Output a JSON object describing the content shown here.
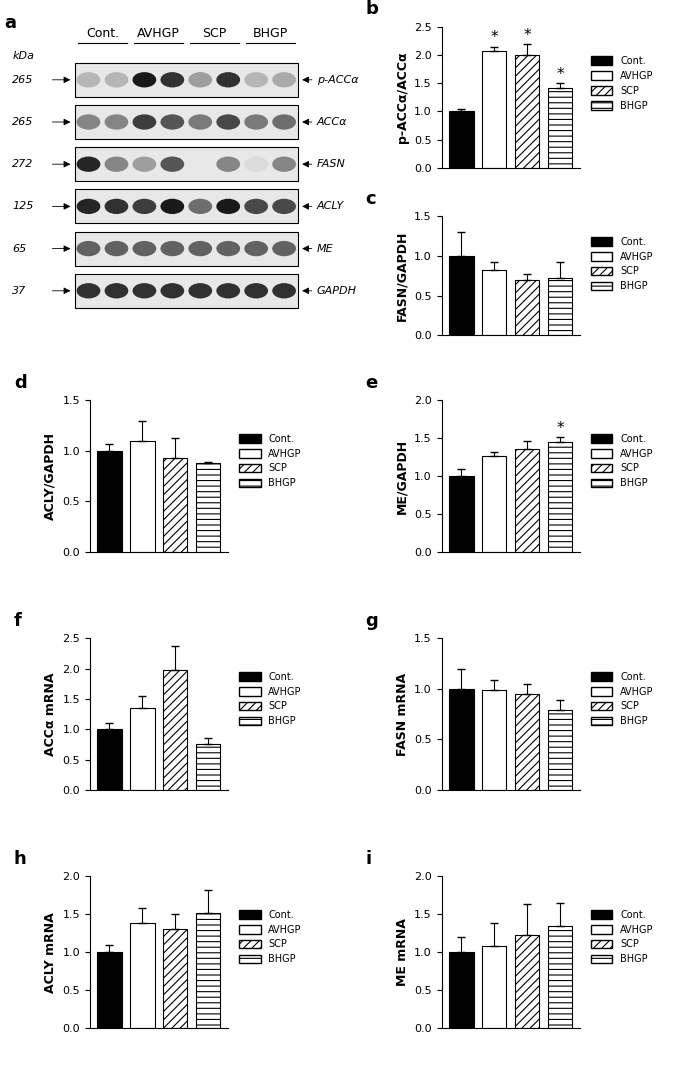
{
  "blot": {
    "panel": "a",
    "kda_label": "kDa",
    "groups": [
      "Cont.",
      "AVHGP",
      "SCP",
      "BHGP"
    ],
    "rows": [
      {
        "kda": "265",
        "protein": "p-ACCα",
        "intensity": [
          0.3,
          0.3,
          0.95,
          0.85,
          0.4,
          0.85,
          0.3,
          0.35
        ]
      },
      {
        "kda": "265",
        "protein": "ACCα",
        "intensity": [
          0.5,
          0.5,
          0.8,
          0.7,
          0.55,
          0.75,
          0.55,
          0.6
        ]
      },
      {
        "kda": "272",
        "protein": "FASN",
        "intensity": [
          0.9,
          0.5,
          0.4,
          0.7,
          0.1,
          0.5,
          0.15,
          0.5
        ]
      },
      {
        "kda": "125",
        "protein": "ACLY",
        "intensity": [
          0.9,
          0.85,
          0.8,
          0.95,
          0.6,
          0.95,
          0.75,
          0.75
        ]
      },
      {
        "kda": "65",
        "protein": "ME",
        "intensity": [
          0.65,
          0.65,
          0.65,
          0.65,
          0.65,
          0.65,
          0.65,
          0.65
        ]
      },
      {
        "kda": "37",
        "protein": "GAPDH",
        "intensity": [
          0.85,
          0.85,
          0.85,
          0.85,
          0.85,
          0.85,
          0.85,
          0.85
        ]
      }
    ]
  },
  "chart_data": [
    {
      "type": "bar",
      "panel": "b",
      "y_label": "p-ACCα/ACCα",
      "categories": [
        "Cont.",
        "AVHGP",
        "SCP",
        "BHGP"
      ],
      "values": [
        1.0,
        2.07,
        2.0,
        1.42
      ],
      "errors": [
        0.05,
        0.08,
        0.2,
        0.08
      ],
      "significance": [
        null,
        "*",
        "*",
        "*"
      ],
      "colors": [
        "#000000",
        "#ffffff",
        "#ffffff",
        "#ffffff"
      ],
      "ylim": [
        0,
        2.5
      ],
      "yticks": [
        {
          "value": 0,
          "label": "0.0"
        },
        {
          "value": 0.5,
          "label": "0.5"
        },
        {
          "value": 1,
          "label": "1.0"
        },
        {
          "value": 1.5,
          "label": "1.5"
        },
        {
          "value": 2,
          "label": "2.0"
        },
        {
          "value": 2.5,
          "label": "2.5"
        }
      ],
      "legend": "right",
      "tick_labels": "y"
    },
    {
      "type": "bar",
      "panel": "c",
      "y_label": "FASN/GAPDH",
      "categories": [
        "Cont.",
        "AVHGP",
        "SCP",
        "BHGP"
      ],
      "values": [
        1.0,
        0.83,
        0.7,
        0.72
      ],
      "errors": [
        0.3,
        0.1,
        0.07,
        0.2
      ],
      "colors": [
        "#000000",
        "#ffffff",
        "#ffffff",
        "#ffffff"
      ],
      "ylim": [
        0,
        1.5
      ],
      "yticks": [
        {
          "value": 0,
          "label": "0.0"
        },
        {
          "value": 0.5,
          "label": "0.5"
        },
        {
          "value": 1,
          "label": "1.0"
        },
        {
          "value": 1.5,
          "label": "1.5"
        }
      ],
      "legend": "right",
      "tick_labels": "y"
    },
    {
      "type": "bar",
      "panel": "d",
      "y_label": "ACLY/GAPDH",
      "categories": [
        "Cont.",
        "AVHGP",
        "SCP",
        "BHGP"
      ],
      "values": [
        1.0,
        1.1,
        0.93,
        0.88
      ],
      "errors": [
        0.07,
        0.2,
        0.2,
        0.01
      ],
      "colors": [
        "#000000",
        "#ffffff",
        "#ffffff",
        "#ffffff"
      ],
      "ylim": [
        0,
        1.5
      ],
      "yticks": [
        {
          "value": 0,
          "label": "0.0"
        },
        {
          "value": 0.5,
          "label": "0.5"
        },
        {
          "value": 1,
          "label": "1.0"
        },
        {
          "value": 1.5,
          "label": "1.5"
        }
      ],
      "legend": "right",
      "tick_labels": "y"
    },
    {
      "type": "bar",
      "panel": "e",
      "y_label": "ME/GAPDH",
      "categories": [
        "Cont.",
        "AVHGP",
        "SCP",
        "BHGP"
      ],
      "values": [
        1.0,
        1.26,
        1.36,
        1.45
      ],
      "errors": [
        0.1,
        0.06,
        0.1,
        0.06
      ],
      "significance": [
        null,
        null,
        null,
        "*"
      ],
      "colors": [
        "#000000",
        "#ffffff",
        "#ffffff",
        "#ffffff"
      ],
      "ylim": [
        0,
        2
      ],
      "yticks": [
        {
          "value": 0,
          "label": "0.0"
        },
        {
          "value": 0.5,
          "label": "0.5"
        },
        {
          "value": 1,
          "label": "1.0"
        },
        {
          "value": 1.5,
          "label": "1.5"
        },
        {
          "value": 2,
          "label": "2.0"
        }
      ],
      "legend": "right",
      "tick_labels": "y"
    },
    {
      "type": "bar",
      "panel": "f",
      "y_label": "ACCα mRNA",
      "categories": [
        "Cont.",
        "AVHGP",
        "SCP",
        "BHGP"
      ],
      "values": [
        1.0,
        1.35,
        1.97,
        0.75
      ],
      "errors": [
        0.1,
        0.2,
        0.4,
        0.1
      ],
      "colors": [
        "#000000",
        "#ffffff",
        "#ffffff",
        "#ffffff"
      ],
      "ylim": [
        0,
        2.5
      ],
      "yticks": [
        {
          "value": 0,
          "label": "0.0"
        },
        {
          "value": 0.5,
          "label": "0.5"
        },
        {
          "value": 1,
          "label": "1.0"
        },
        {
          "value": 1.5,
          "label": "1.5"
        },
        {
          "value": 2,
          "label": "2.0"
        },
        {
          "value": 2.5,
          "label": "2.5"
        }
      ],
      "legend": "right",
      "tick_labels": "y"
    },
    {
      "type": "bar",
      "panel": "g",
      "y_label": "FASN mRNA",
      "categories": [
        "Cont.",
        "AVHGP",
        "SCP",
        "BHGP"
      ],
      "values": [
        1.0,
        0.99,
        0.95,
        0.79
      ],
      "errors": [
        0.2,
        0.1,
        0.1,
        0.1
      ],
      "colors": [
        "#000000",
        "#ffffff",
        "#ffffff",
        "#ffffff"
      ],
      "ylim": [
        0,
        1.5
      ],
      "yticks": [
        {
          "value": 0,
          "label": "0.0"
        },
        {
          "value": 0.5,
          "label": "0.5"
        },
        {
          "value": 1,
          "label": "1.0"
        },
        {
          "value": 1.5,
          "label": "1.5"
        }
      ],
      "legend": "right",
      "tick_labels": "y"
    },
    {
      "type": "bar",
      "panel": "h",
      "y_label": "ACLY mRNA",
      "categories": [
        "Cont.",
        "AVHGP",
        "SCP",
        "BHGP"
      ],
      "values": [
        1.0,
        1.38,
        1.3,
        1.52
      ],
      "errors": [
        0.1,
        0.2,
        0.2,
        0.3
      ],
      "colors": [
        "#000000",
        "#ffffff",
        "#ffffff",
        "#ffffff"
      ],
      "ylim": [
        0,
        2
      ],
      "yticks": [
        {
          "value": 0,
          "label": "0.0"
        },
        {
          "value": 0.5,
          "label": "0.5"
        },
        {
          "value": 1,
          "label": "1.0"
        },
        {
          "value": 1.5,
          "label": "1.5"
        },
        {
          "value": 2,
          "label": "2.0"
        }
      ],
      "legend": "right",
      "tick_labels": "y"
    },
    {
      "type": "bar",
      "panel": "i",
      "y_label": "ME mRNA",
      "categories": [
        "Cont.",
        "AVHGP",
        "SCP",
        "BHGP"
      ],
      "values": [
        1.0,
        1.08,
        1.23,
        1.35
      ],
      "errors": [
        0.2,
        0.3,
        0.4,
        0.3
      ],
      "colors": [
        "#000000",
        "#ffffff",
        "#ffffff",
        "#ffffff"
      ],
      "ylim": [
        0,
        2
      ],
      "yticks": [
        {
          "value": 0,
          "label": "0.0"
        },
        {
          "value": 0.5,
          "label": "0.5"
        },
        {
          "value": 1,
          "label": "1.0"
        },
        {
          "value": 1.5,
          "label": "1.5"
        },
        {
          "value": 2,
          "label": "2.0"
        }
      ],
      "legend": "right",
      "tick_labels": "y"
    }
  ]
}
